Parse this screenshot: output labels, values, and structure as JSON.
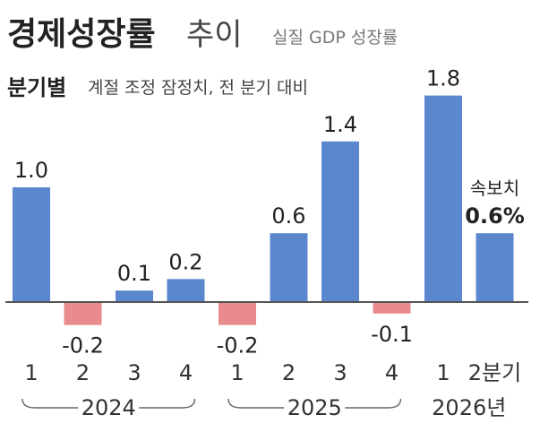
{
  "chart_data": {
    "type": "bar",
    "title": "경제성장률",
    "title_suffix": "추이",
    "subtitle": "실질 GDP 성장률",
    "subheading": "분기별",
    "subheading_note": "계절 조정 잠정치, 전 분기 대비",
    "categories": [
      "1",
      "2",
      "3",
      "4",
      "1",
      "2",
      "3",
      "4",
      "1",
      "2분기"
    ],
    "year_groups": [
      {
        "label": "2024",
        "start": 0,
        "end": 3
      },
      {
        "label": "2025",
        "start": 4,
        "end": 7
      },
      {
        "label": "2026년",
        "start": 8,
        "end": 9
      }
    ],
    "values": [
      1.0,
      -0.2,
      0.1,
      0.2,
      -0.2,
      0.6,
      1.4,
      -0.1,
      1.8,
      0.6
    ],
    "value_labels": [
      "1.0",
      "-0.2",
      "0.1",
      "0.2",
      "-0.2",
      "0.6",
      "1.4",
      "-0.1",
      "1.8",
      "0.6%"
    ],
    "preliminary_note": "속보치",
    "preliminary_index": 9,
    "ylim": [
      -0.25,
      1.8
    ],
    "colors": {
      "positive": "#5b87cf",
      "negative": "#e98a8c",
      "axis": "#555555"
    }
  }
}
